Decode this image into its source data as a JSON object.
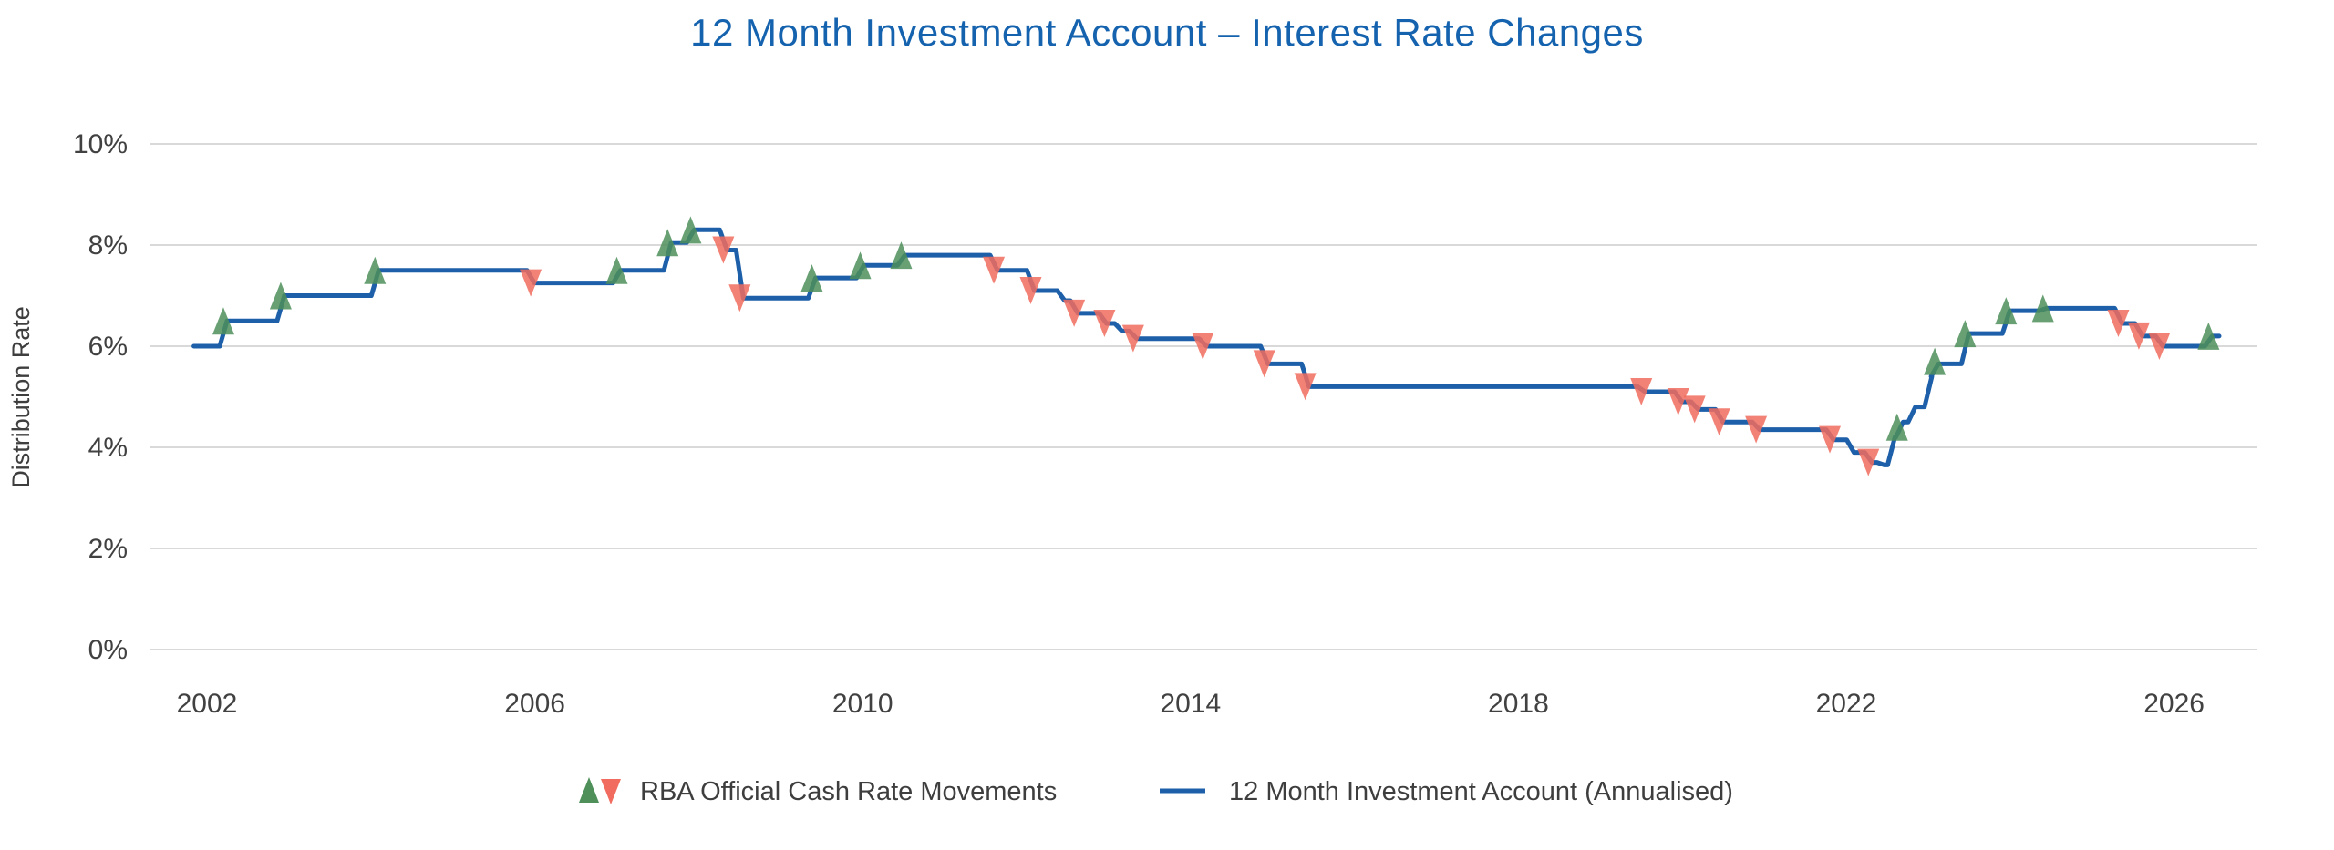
{
  "title": "12 Month Investment Account – Interest Rate Changes",
  "colors": {
    "title": "#1563af",
    "line": "#1d5fa9",
    "marker_up": "#4e8f5a",
    "marker_down": "#f16c5e",
    "grid": "#d9d9d9",
    "text": "#3e3e3e"
  },
  "y_axis": {
    "label": "Distribution Rate",
    "ticks": [
      "0%",
      "2%",
      "4%",
      "6%",
      "8%",
      "10%"
    ],
    "tick_values": [
      0,
      2,
      4,
      6,
      8,
      10
    ]
  },
  "x_axis": {
    "ticks": [
      2002,
      2006,
      2010,
      2014,
      2018,
      2022,
      2026
    ]
  },
  "legend": {
    "rba_label": "RBA Official Cash Rate Movements",
    "account_label": "12 Month Investment Account (Annualised)"
  },
  "chart_data": {
    "type": "line",
    "title": "12 Month Investment Account – Interest Rate Changes",
    "ylabel": "Distribution Rate",
    "unit": "percent",
    "ylim": [
      0,
      10
    ],
    "xlim": [
      2001.3,
      2027.0
    ],
    "grid": "horizontal",
    "legend_position": "bottom",
    "series_name": "12 Month Investment Account (Annualised)",
    "markers_name": "RBA Official Cash Rate Movements",
    "line_start_year": 2001.84,
    "line_end_year": 2026.55,
    "line_steps": [
      [
        2001.84,
        6.0
      ],
      [
        2002.2,
        6.5
      ],
      [
        2002.9,
        7.0
      ],
      [
        2004.05,
        7.5
      ],
      [
        2005.95,
        7.25
      ],
      [
        2007.0,
        7.5
      ],
      [
        2007.62,
        8.05
      ],
      [
        2007.9,
        8.3
      ],
      [
        2008.3,
        7.9
      ],
      [
        2008.5,
        6.95
      ],
      [
        2009.38,
        7.35
      ],
      [
        2009.97,
        7.6
      ],
      [
        2010.47,
        7.8
      ],
      [
        2011.6,
        7.5
      ],
      [
        2012.05,
        7.1
      ],
      [
        2012.42,
        6.9
      ],
      [
        2012.58,
        6.65
      ],
      [
        2012.93,
        6.45
      ],
      [
        2013.12,
        6.3
      ],
      [
        2013.3,
        6.15
      ],
      [
        2014.15,
        6.0
      ],
      [
        2014.9,
        5.65
      ],
      [
        2015.4,
        5.2
      ],
      [
        2019.5,
        5.1
      ],
      [
        2019.95,
        4.9
      ],
      [
        2020.15,
        4.75
      ],
      [
        2020.45,
        4.5
      ],
      [
        2020.9,
        4.35
      ],
      [
        2021.8,
        4.15
      ],
      [
        2022.05,
        3.9
      ],
      [
        2022.27,
        3.7
      ],
      [
        2022.42,
        3.65
      ],
      [
        2022.55,
        4.2
      ],
      [
        2022.65,
        4.5
      ],
      [
        2022.8,
        4.8
      ],
      [
        2023.0,
        5.4
      ],
      [
        2023.08,
        5.65
      ],
      [
        2023.45,
        6.25
      ],
      [
        2023.95,
        6.7
      ],
      [
        2024.4,
        6.75
      ],
      [
        2025.32,
        6.45
      ],
      [
        2025.57,
        6.2
      ],
      [
        2025.82,
        6.0
      ],
      [
        2026.42,
        6.2
      ]
    ],
    "markers": [
      {
        "year": 2002.2,
        "rate": 6.5,
        "dir": "up"
      },
      {
        "year": 2002.9,
        "rate": 7.0,
        "dir": "up"
      },
      {
        "year": 2004.05,
        "rate": 7.5,
        "dir": "up"
      },
      {
        "year": 2005.95,
        "rate": 7.25,
        "dir": "down"
      },
      {
        "year": 2007.0,
        "rate": 7.5,
        "dir": "up"
      },
      {
        "year": 2007.62,
        "rate": 8.05,
        "dir": "up"
      },
      {
        "year": 2007.9,
        "rate": 8.3,
        "dir": "up"
      },
      {
        "year": 2008.3,
        "rate": 7.9,
        "dir": "down"
      },
      {
        "year": 2008.5,
        "rate": 6.95,
        "dir": "down"
      },
      {
        "year": 2009.38,
        "rate": 7.35,
        "dir": "up"
      },
      {
        "year": 2009.97,
        "rate": 7.6,
        "dir": "up"
      },
      {
        "year": 2010.47,
        "rate": 7.8,
        "dir": "up"
      },
      {
        "year": 2011.6,
        "rate": 7.5,
        "dir": "down"
      },
      {
        "year": 2012.05,
        "rate": 7.1,
        "dir": "down"
      },
      {
        "year": 2012.58,
        "rate": 6.65,
        "dir": "down"
      },
      {
        "year": 2012.95,
        "rate": 6.45,
        "dir": "down"
      },
      {
        "year": 2013.3,
        "rate": 6.15,
        "dir": "down"
      },
      {
        "year": 2014.15,
        "rate": 6.0,
        "dir": "down"
      },
      {
        "year": 2014.9,
        "rate": 5.65,
        "dir": "down"
      },
      {
        "year": 2015.4,
        "rate": 5.2,
        "dir": "down"
      },
      {
        "year": 2019.5,
        "rate": 5.1,
        "dir": "down"
      },
      {
        "year": 2019.95,
        "rate": 4.9,
        "dir": "down"
      },
      {
        "year": 2020.15,
        "rate": 4.75,
        "dir": "down"
      },
      {
        "year": 2020.45,
        "rate": 4.5,
        "dir": "down"
      },
      {
        "year": 2020.9,
        "rate": 4.35,
        "dir": "down"
      },
      {
        "year": 2021.8,
        "rate": 4.15,
        "dir": "down"
      },
      {
        "year": 2022.27,
        "rate": 3.7,
        "dir": "down"
      },
      {
        "year": 2022.62,
        "rate": 4.4,
        "dir": "up"
      },
      {
        "year": 2023.08,
        "rate": 5.7,
        "dir": "up"
      },
      {
        "year": 2023.45,
        "rate": 6.25,
        "dir": "up"
      },
      {
        "year": 2023.95,
        "rate": 6.7,
        "dir": "up"
      },
      {
        "year": 2024.4,
        "rate": 6.75,
        "dir": "up"
      },
      {
        "year": 2025.32,
        "rate": 6.45,
        "dir": "down"
      },
      {
        "year": 2025.57,
        "rate": 6.2,
        "dir": "down"
      },
      {
        "year": 2025.82,
        "rate": 6.0,
        "dir": "down"
      },
      {
        "year": 2026.42,
        "rate": 6.2,
        "dir": "up"
      }
    ]
  }
}
